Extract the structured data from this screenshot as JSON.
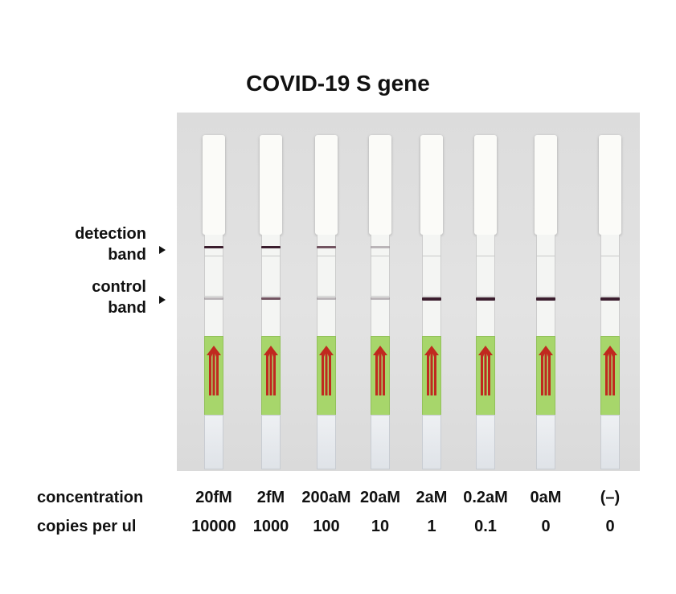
{
  "title": "COVID-19 S gene",
  "side_labels": {
    "detection": [
      "detection",
      "band"
    ],
    "control": [
      "control",
      "band"
    ]
  },
  "rows": {
    "concentration_label": "concentration",
    "copies_label": "copies per ul"
  },
  "colors": {
    "pad_green": "#a7d66b",
    "arrow_red": "#c0291f",
    "band_dark": "#3b1e2e"
  },
  "strips": [
    {
      "concentration": "20fM",
      "copies": "10000",
      "detection_band": "strong",
      "control_band": "faint"
    },
    {
      "concentration": "2fM",
      "copies": "1000",
      "detection_band": "strong",
      "control_band": "medium"
    },
    {
      "concentration": "200aM",
      "copies": "100",
      "detection_band": "medium",
      "control_band": "faint"
    },
    {
      "concentration": "20aM",
      "copies": "10",
      "detection_band": "faint",
      "control_band": "faint"
    },
    {
      "concentration": "2aM",
      "copies": "1",
      "detection_band": "none",
      "control_band": "strong"
    },
    {
      "concentration": "0.2aM",
      "copies": "0.1",
      "detection_band": "none",
      "control_band": "strong"
    },
    {
      "concentration": "0aM",
      "copies": "0",
      "detection_band": "none",
      "control_band": "strong"
    },
    {
      "concentration": "(–)",
      "copies": "0",
      "detection_band": "none",
      "control_band": "strong"
    }
  ]
}
